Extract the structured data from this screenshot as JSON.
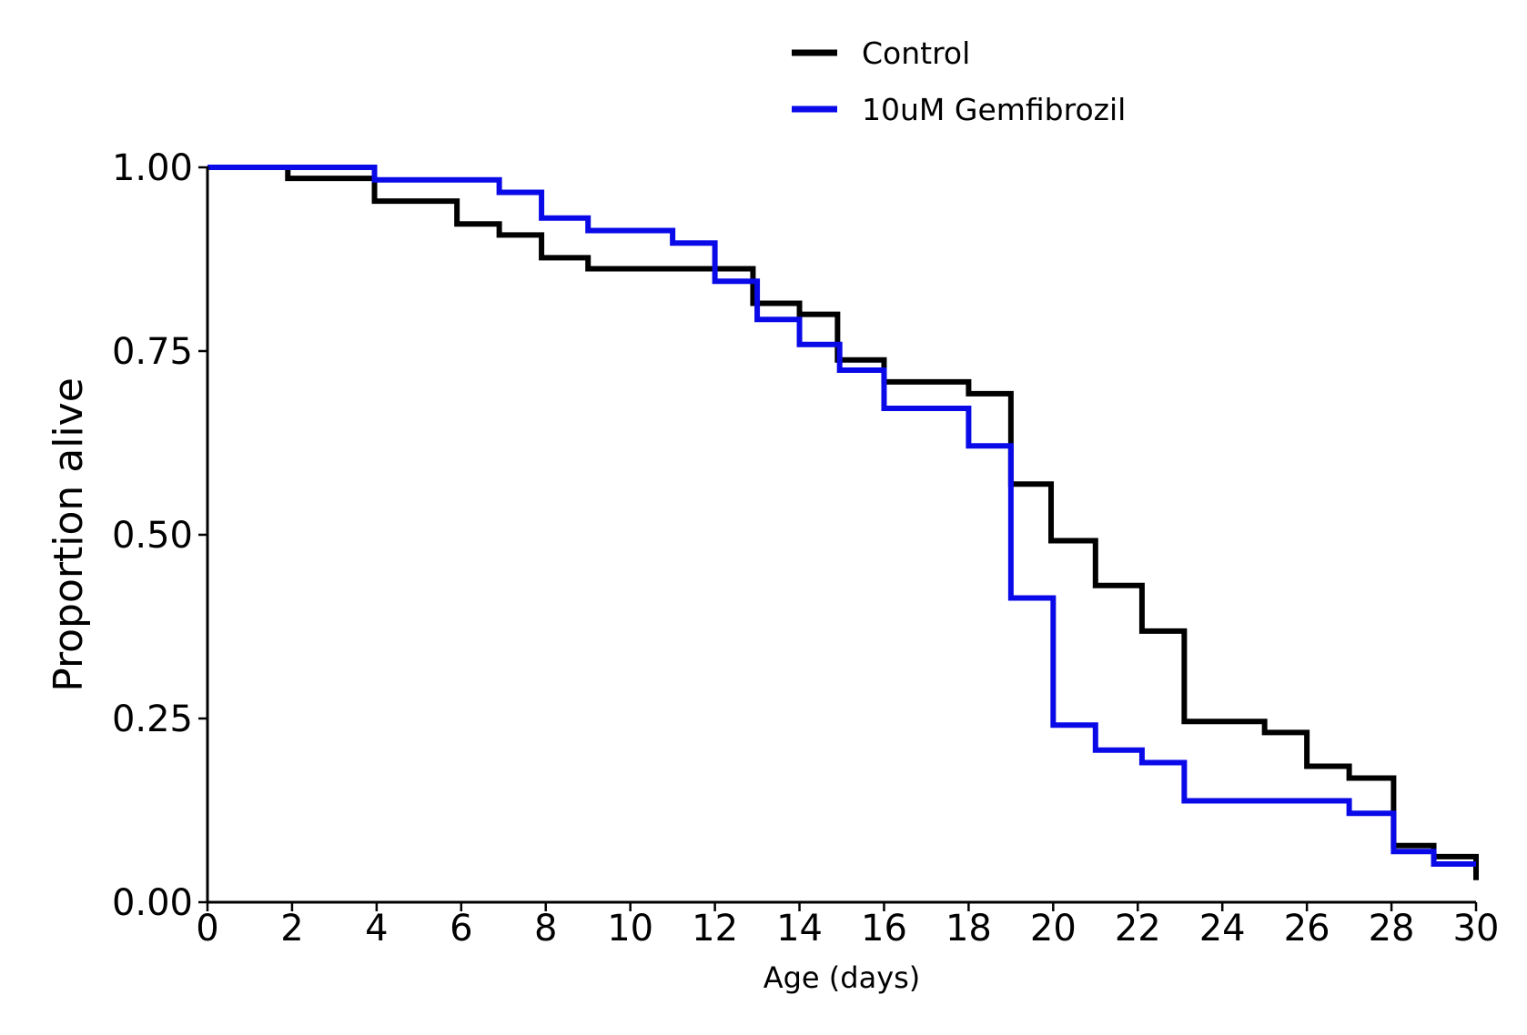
{
  "chart_data": {
    "type": "line",
    "step": "post",
    "title": "",
    "xlabel": "Age (days)",
    "ylabel": "Proportion alive",
    "xlim": [
      0,
      30
    ],
    "ylim": [
      0,
      1
    ],
    "xticks": [
      0,
      2,
      4,
      6,
      8,
      10,
      12,
      14,
      16,
      18,
      20,
      22,
      24,
      26,
      28,
      30
    ],
    "xtick_labels": [
      "0",
      "2",
      "4",
      "6",
      "8",
      "10",
      "12",
      "14",
      "16",
      "18",
      "20",
      "22",
      "24",
      "26",
      "28",
      "30"
    ],
    "yticks": [
      0,
      0.25,
      0.5,
      0.75,
      1.0
    ],
    "ytick_labels": [
      "0.00",
      "0.25",
      "0.50",
      "0.75",
      "1.00"
    ],
    "grid": false,
    "legend_position": "top",
    "series": [
      {
        "name": "Control",
        "color": "#000000",
        "x": [
          0,
          1.9,
          3.95,
          5.9,
          6.9,
          7.9,
          9.0,
          12.9,
          14.0,
          14.9,
          16.0,
          18.0,
          19.0,
          19.95,
          21.0,
          22.1,
          23.1,
          25.0,
          26.0,
          27.0,
          28.05,
          29.0,
          30.0
        ],
        "y": [
          1.0,
          0.985,
          0.954,
          0.923,
          0.908,
          0.877,
          0.862,
          0.815,
          0.8,
          0.738,
          0.708,
          0.692,
          0.569,
          0.492,
          0.431,
          0.369,
          0.246,
          0.231,
          0.185,
          0.169,
          0.077,
          0.062,
          0.03
        ]
      },
      {
        "name": "10uM Gemfibrozil",
        "color": "#0a0ae8",
        "x": [
          0,
          3.95,
          6.9,
          7.9,
          9.0,
          11.0,
          12.0,
          13.0,
          14.0,
          14.95,
          16.0,
          18.0,
          19.0,
          20.0,
          21.0,
          22.1,
          23.1,
          27.0,
          28.05,
          29.0,
          30.0
        ],
        "y": [
          1.0,
          0.983,
          0.966,
          0.931,
          0.914,
          0.897,
          0.845,
          0.793,
          0.759,
          0.724,
          0.672,
          0.621,
          0.414,
          0.241,
          0.207,
          0.19,
          0.138,
          0.121,
          0.069,
          0.052,
          0.052
        ]
      }
    ]
  }
}
